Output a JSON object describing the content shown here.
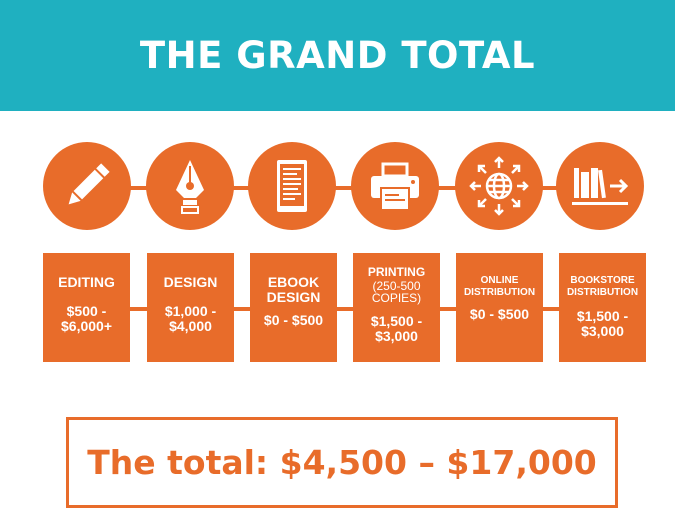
{
  "header": {
    "title": "THE GRAND TOTAL"
  },
  "colors": {
    "teal": "#1fb0c0",
    "orange": "#e86c2a"
  },
  "steps": [
    {
      "icon": "pencil-icon",
      "title": "EDITING",
      "price": "$500 - $6,000+"
    },
    {
      "icon": "pen-nib-icon",
      "title": "DESIGN",
      "price": "$1,000 - $4,000"
    },
    {
      "icon": "ebook-reader-icon",
      "title": "EBOOK DESIGN",
      "price": "$0 - $500"
    },
    {
      "icon": "printer-icon",
      "title": "PRINTING",
      "subtitle": "(250-500 COPIES)",
      "price": "$1,500 - $3,000"
    },
    {
      "icon": "globe-arrows-icon",
      "title": "ONLINE DISTRIBUTION",
      "price": "$0 - $500"
    },
    {
      "icon": "books-shelf-icon",
      "title": "BOOKSTORE DISTRIBUTION",
      "price": "$1,500 - $3,000"
    }
  ],
  "total": {
    "text": "The total: $4,500 – $17,000"
  }
}
